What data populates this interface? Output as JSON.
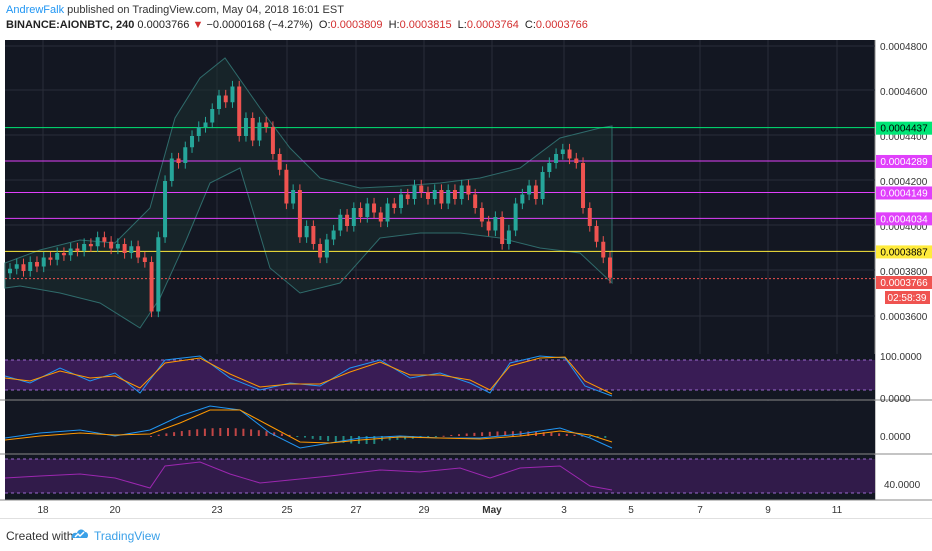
{
  "header": {
    "author": "AndrewFalk",
    "published": "published on TradingView.com, May 04, 2018 16:01 EST",
    "symbol": "BINANCE:AIONBTC, 240",
    "last": "0.0003766",
    "arrow": "▼",
    "change": "−0.0000168 (−4.27%)",
    "open_label": "O:",
    "open": "0.0003809",
    "high_label": "H:",
    "high": "0.0003815",
    "low_label": "L:",
    "low": "0.0003764",
    "close_label": "C:",
    "close": "0.0003766"
  },
  "colors": {
    "bg": "#131722",
    "up": "#26a69a",
    "down": "#ef5350",
    "green_line": "#4caf50",
    "magenta": "#e040fb",
    "yellow": "#ffeb3b",
    "bb": "#1f3a3a"
  },
  "price_axis": {
    "ticks": [
      "0.0004800",
      "0.0004600",
      "0.0004400",
      "0.0004200",
      "0.0004000",
      "0.0003800",
      "0.0003600"
    ]
  },
  "levels": [
    {
      "label": "0.0004437",
      "color": "#00e676",
      "text_color": "#000000",
      "price": 0.0004437
    },
    {
      "label": "0.0004289",
      "color": "#e040fb",
      "text_color": "#ffffff",
      "price": 0.0004289
    },
    {
      "label": "0.0004149",
      "color": "#e040fb",
      "text_color": "#ffffff",
      "price": 0.0004149
    },
    {
      "label": "0.0004034",
      "color": "#e040fb",
      "text_color": "#ffffff",
      "price": 0.0004034
    },
    {
      "label": "0.0003887",
      "color": "#ffeb3b",
      "text_color": "#000000",
      "price": 0.0003887
    }
  ],
  "last_price_label": {
    "label": "0.0003766",
    "timer": "02:58:39",
    "price": 0.0003766
  },
  "stoch_axis": {
    "ticks": [
      "100.0000",
      "0.0000"
    ]
  },
  "macd_axis": {
    "ticks": [
      "0.0000"
    ]
  },
  "rsi_axis": {
    "ticks": [
      "40.0000"
    ]
  },
  "time_axis": {
    "labels": [
      "18",
      "20",
      "23",
      "25",
      "27",
      "29",
      "May",
      "3",
      "5",
      "7",
      "9",
      "11"
    ]
  },
  "footer": {
    "created": "Created with",
    "brand": "TradingView"
  }
}
